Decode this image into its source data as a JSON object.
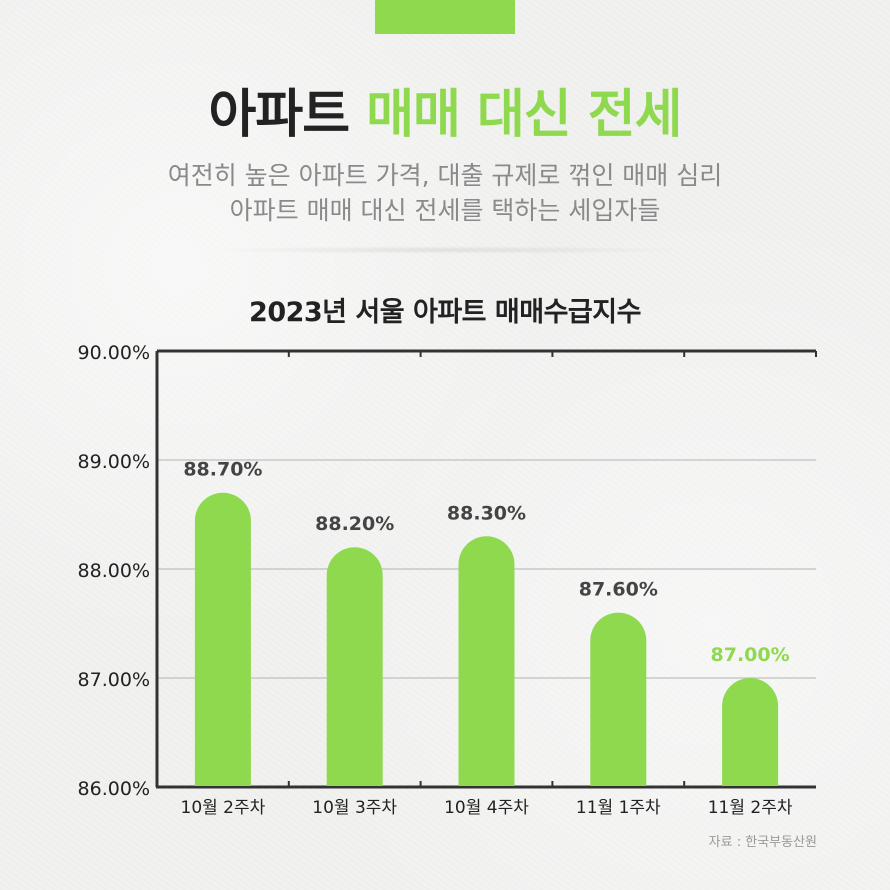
{
  "header": {
    "title_part1": "아파트",
    "title_part2": "매매 대신 전세",
    "subtitle_line1": "여전히 높은 아파트 가격, 대출 규제로 꺾인 매매 심리",
    "subtitle_line2": "아파트 매매 대신 전세를 택하는 세입자들"
  },
  "colors": {
    "accent": "#8fd94f",
    "dark_text": "#222222",
    "value_label": "#444444",
    "muted_text": "#8a8a8a",
    "axis": "#333333",
    "grid": "#c8c8c8"
  },
  "chart_data": {
    "type": "bar",
    "title": "2023년 서울 아파트 매매수급지수",
    "categories": [
      "10월 2주차",
      "10월 3주차",
      "10월 4주차",
      "11월 1주차",
      "11월 2주차"
    ],
    "values": [
      88.7,
      88.2,
      88.3,
      87.6,
      87.0
    ],
    "value_labels": [
      "88.70%",
      "88.20%",
      "88.30%",
      "87.60%",
      "87.00%"
    ],
    "highlight_index": 4,
    "ylim": [
      86,
      90
    ],
    "yticks": [
      86,
      87,
      88,
      89,
      90
    ],
    "ytick_labels": [
      "86.00%",
      "87.00%",
      "88.00%",
      "89.00%",
      "90.00%"
    ],
    "xlabel": "",
    "ylabel": "",
    "grid": true
  },
  "footer": {
    "source": "자료 : 한국부동산원"
  }
}
